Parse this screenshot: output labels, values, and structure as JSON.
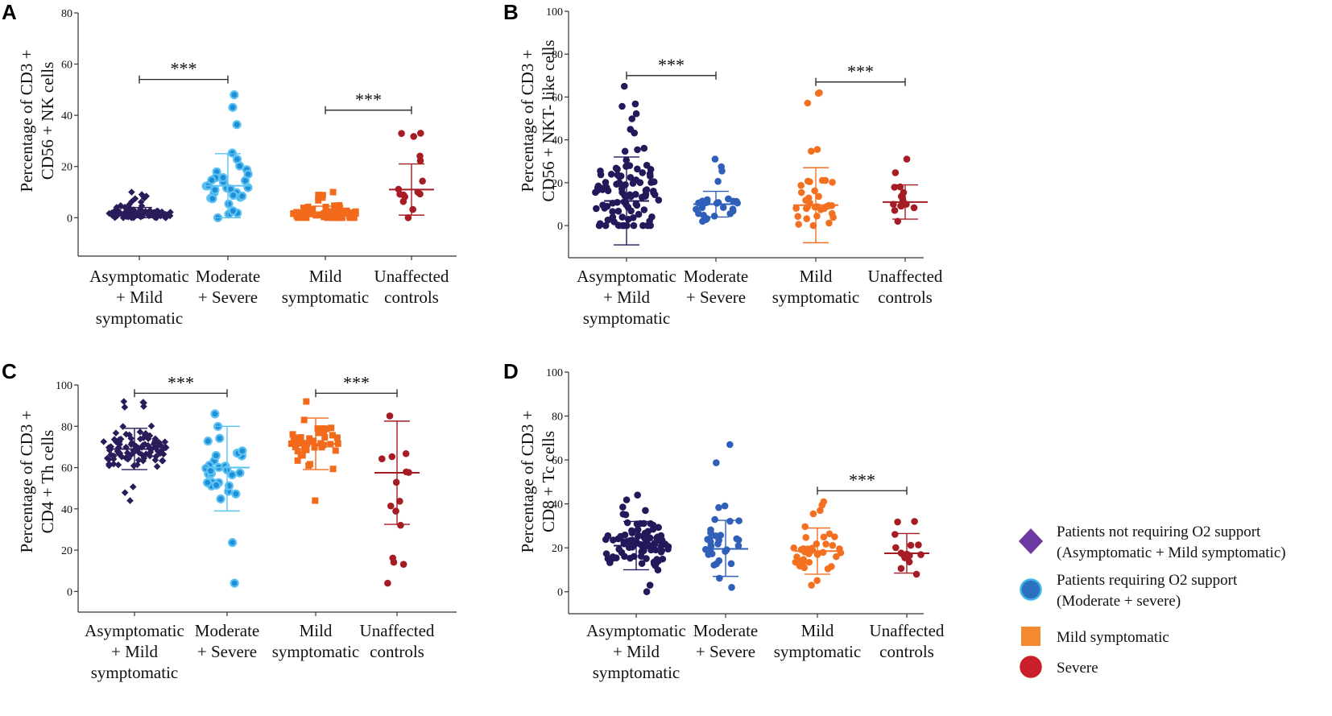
{
  "legend": {
    "items": [
      {
        "marker": "diamond",
        "color": "#6a3aa0",
        "border": "#6a3aa0",
        "lines": [
          "Patients not requiring O2 support",
          "(Asymptomatic + Mild symptomatic)"
        ]
      },
      {
        "marker": "circle",
        "color": "#2f6fbf",
        "border": "#3fb6ea",
        "lines": [
          "Patients requiring O2 support",
          "(Moderate + severe)"
        ]
      },
      {
        "marker": "square",
        "color": "#f28a30",
        "border": "#f28a30",
        "lines": [
          "Mild symptomatic"
        ]
      },
      {
        "marker": "circle",
        "color": "#c8202a",
        "border": "#c8202a",
        "lines": [
          "Severe"
        ]
      }
    ]
  },
  "chart_data": [
    {
      "panel": "A",
      "type": "scatter",
      "ylabel": [
        "Percentage of  CD3 +",
        "CD56 + NK cells"
      ],
      "ylim": [
        -15,
        80
      ],
      "yticks": [
        0,
        20,
        40,
        60,
        80
      ],
      "categories": [
        [
          "Asymptomatic",
          "+ Mild",
          "symptomatic"
        ],
        [
          "Moderate",
          "+ Severe"
        ],
        [
          "Mild",
          "symptomatic"
        ],
        [
          "Unaffected",
          "controls"
        ]
      ],
      "series": [
        {
          "name": "Asymptomatic + Mild symptomatic",
          "marker": "diamond",
          "color": "#2a1c5a",
          "border": "#2a1c5a",
          "n": 100,
          "mean": 1.5,
          "sd_low": 0,
          "sd_high": 4,
          "min": 0,
          "max": 10,
          "seed": 11
        },
        {
          "name": "Moderate + Severe",
          "marker": "ring",
          "color": "#1e8fd6",
          "border": "#5cc2f2",
          "n": 32,
          "mean": 12.5,
          "sd_low": 0,
          "sd_high": 25,
          "min": 0,
          "max": 48,
          "seed": 12
        },
        {
          "name": "Mild symptomatic",
          "marker": "square",
          "color": "#f26a1b",
          "border": "#f26a1b",
          "n": 70,
          "mean": 1.5,
          "sd_low": 0,
          "sd_high": 4.5,
          "min": 0,
          "max": 10,
          "seed": 13
        },
        {
          "name": "Unaffected controls",
          "marker": "circle",
          "color": "#a61c24",
          "border": "#a61c24",
          "n": 15,
          "mean": 11,
          "sd_low": 1,
          "sd_high": 21,
          "min": 0,
          "max": 33,
          "seed": 14
        }
      ],
      "significance": [
        {
          "from": 0,
          "to": 1,
          "y": 54,
          "label": "***"
        },
        {
          "from": 2,
          "to": 3,
          "y": 42,
          "label": "***"
        }
      ]
    },
    {
      "panel": "B",
      "type": "scatter",
      "ylabel": [
        "Percentage of  CD3 +",
        "CD56 + NKT- like cells"
      ],
      "ylim": [
        -15,
        100
      ],
      "yticks": [
        0,
        20,
        40,
        60,
        80,
        100
      ],
      "categories": [
        [
          "Asymptomatic",
          "+ Mild",
          "symptomatic"
        ],
        [
          "Moderate",
          "+ Severe"
        ],
        [
          "Mild",
          "symptomatic"
        ],
        [
          "Unaffected",
          "controls"
        ]
      ],
      "series": [
        {
          "name": "Asymptomatic + Mild symptomatic",
          "marker": "circle",
          "color": "#22195a",
          "border": "#22195a",
          "n": 100,
          "mean": 11.5,
          "sd_low": -9,
          "sd_high": 32,
          "min": 0,
          "max": 65,
          "seed": 21
        },
        {
          "name": "Moderate + Severe",
          "marker": "circle",
          "color": "#2f5fb8",
          "border": "#2f5fb8",
          "n": 32,
          "mean": 10,
          "sd_low": 4,
          "sd_high": 16,
          "min": 2,
          "max": 31,
          "seed": 22
        },
        {
          "name": "Mild symptomatic",
          "marker": "circle",
          "color": "#f27020",
          "border": "#f27020",
          "n": 36,
          "mean": 9.5,
          "sd_low": -8,
          "sd_high": 27,
          "min": 0,
          "max": 62,
          "seed": 23
        },
        {
          "name": "Unaffected controls",
          "marker": "circle",
          "color": "#a61c24",
          "border": "#a61c24",
          "n": 15,
          "mean": 11,
          "sd_low": 3,
          "sd_high": 19,
          "min": 2,
          "max": 31,
          "seed": 24
        }
      ],
      "significance": [
        {
          "from": 0,
          "to": 1,
          "y": 70,
          "label": "***"
        },
        {
          "from": 2,
          "to": 3,
          "y": 67,
          "label": "***"
        }
      ]
    },
    {
      "panel": "C",
      "type": "scatter",
      "ylabel": [
        "Percentage of  CD3 +",
        "CD4 + Th cells"
      ],
      "ylim": [
        -10,
        100
      ],
      "yticks": [
        0,
        20,
        40,
        60,
        80,
        100
      ],
      "categories": [
        [
          "Asymptomatic",
          "+ Mild",
          "symptomatic"
        ],
        [
          "Moderate",
          "+ Severe"
        ],
        [
          "Mild",
          "symptomatic"
        ],
        [
          "Unaffected",
          "controls"
        ]
      ],
      "series": [
        {
          "name": "Asymptomatic + Mild symptomatic",
          "marker": "diamond",
          "color": "#2a1c5a",
          "border": "#2a1c5a",
          "n": 100,
          "mean": 69,
          "sd_low": 59,
          "sd_high": 79,
          "min": 44,
          "max": 92,
          "seed": 31
        },
        {
          "name": "Moderate + Severe",
          "marker": "ring",
          "color": "#1e8fd6",
          "border": "#5cc2f2",
          "n": 32,
          "mean": 60,
          "sd_low": 39,
          "sd_high": 80,
          "min": 4,
          "max": 86,
          "seed": 32
        },
        {
          "name": "Mild symptomatic",
          "marker": "square",
          "color": "#f26a1b",
          "border": "#f26a1b",
          "n": 40,
          "mean": 71.5,
          "sd_low": 59,
          "sd_high": 84,
          "min": 44,
          "max": 92,
          "seed": 33
        },
        {
          "name": "Unaffected controls",
          "marker": "circle",
          "color": "#a61c24",
          "border": "#a61c24",
          "n": 15,
          "mean": 57.5,
          "sd_low": 32.5,
          "sd_high": 82.5,
          "min": 4,
          "max": 85,
          "seed": 34
        }
      ],
      "significance": [
        {
          "from": 0,
          "to": 1,
          "y": 96,
          "label": "***"
        },
        {
          "from": 2,
          "to": 3,
          "y": 96,
          "label": "***"
        }
      ]
    },
    {
      "panel": "D",
      "type": "scatter",
      "ylabel": [
        "Percentage of  CD3 +",
        "CD8 + Tc cells"
      ],
      "ylim": [
        -10,
        100
      ],
      "yticks": [
        0,
        20,
        40,
        60,
        80,
        100
      ],
      "categories": [
        [
          "Asymptomatic",
          "+ Mild",
          "symptomatic"
        ],
        [
          "Moderate",
          "+ Severe"
        ],
        [
          "Mild",
          "symptomatic"
        ],
        [
          "Unaffected",
          "controls"
        ]
      ],
      "series": [
        {
          "name": "Asymptomatic + Mild symptomatic",
          "marker": "circle",
          "color": "#22195a",
          "border": "#22195a",
          "n": 100,
          "mean": 21,
          "sd_low": 10,
          "sd_high": 32,
          "min": 0,
          "max": 44,
          "seed": 41
        },
        {
          "name": "Moderate + Severe",
          "marker": "circle",
          "color": "#2f5fb8",
          "border": "#2f5fb8",
          "n": 32,
          "mean": 19.5,
          "sd_low": 7,
          "sd_high": 32.5,
          "min": 2,
          "max": 67,
          "seed": 42
        },
        {
          "name": "Mild symptomatic",
          "marker": "circle",
          "color": "#f27020",
          "border": "#f27020",
          "n": 38,
          "mean": 18.5,
          "sd_low": 8,
          "sd_high": 29,
          "min": 3,
          "max": 41,
          "seed": 43
        },
        {
          "name": "Unaffected controls",
          "marker": "circle",
          "color": "#a61c24",
          "border": "#a61c24",
          "n": 15,
          "mean": 17.5,
          "sd_low": 8.5,
          "sd_high": 26.5,
          "min": 8,
          "max": 32,
          "seed": 44
        }
      ],
      "significance": [
        {
          "from": 2,
          "to": 3,
          "y": 46,
          "label": "***"
        }
      ]
    }
  ]
}
